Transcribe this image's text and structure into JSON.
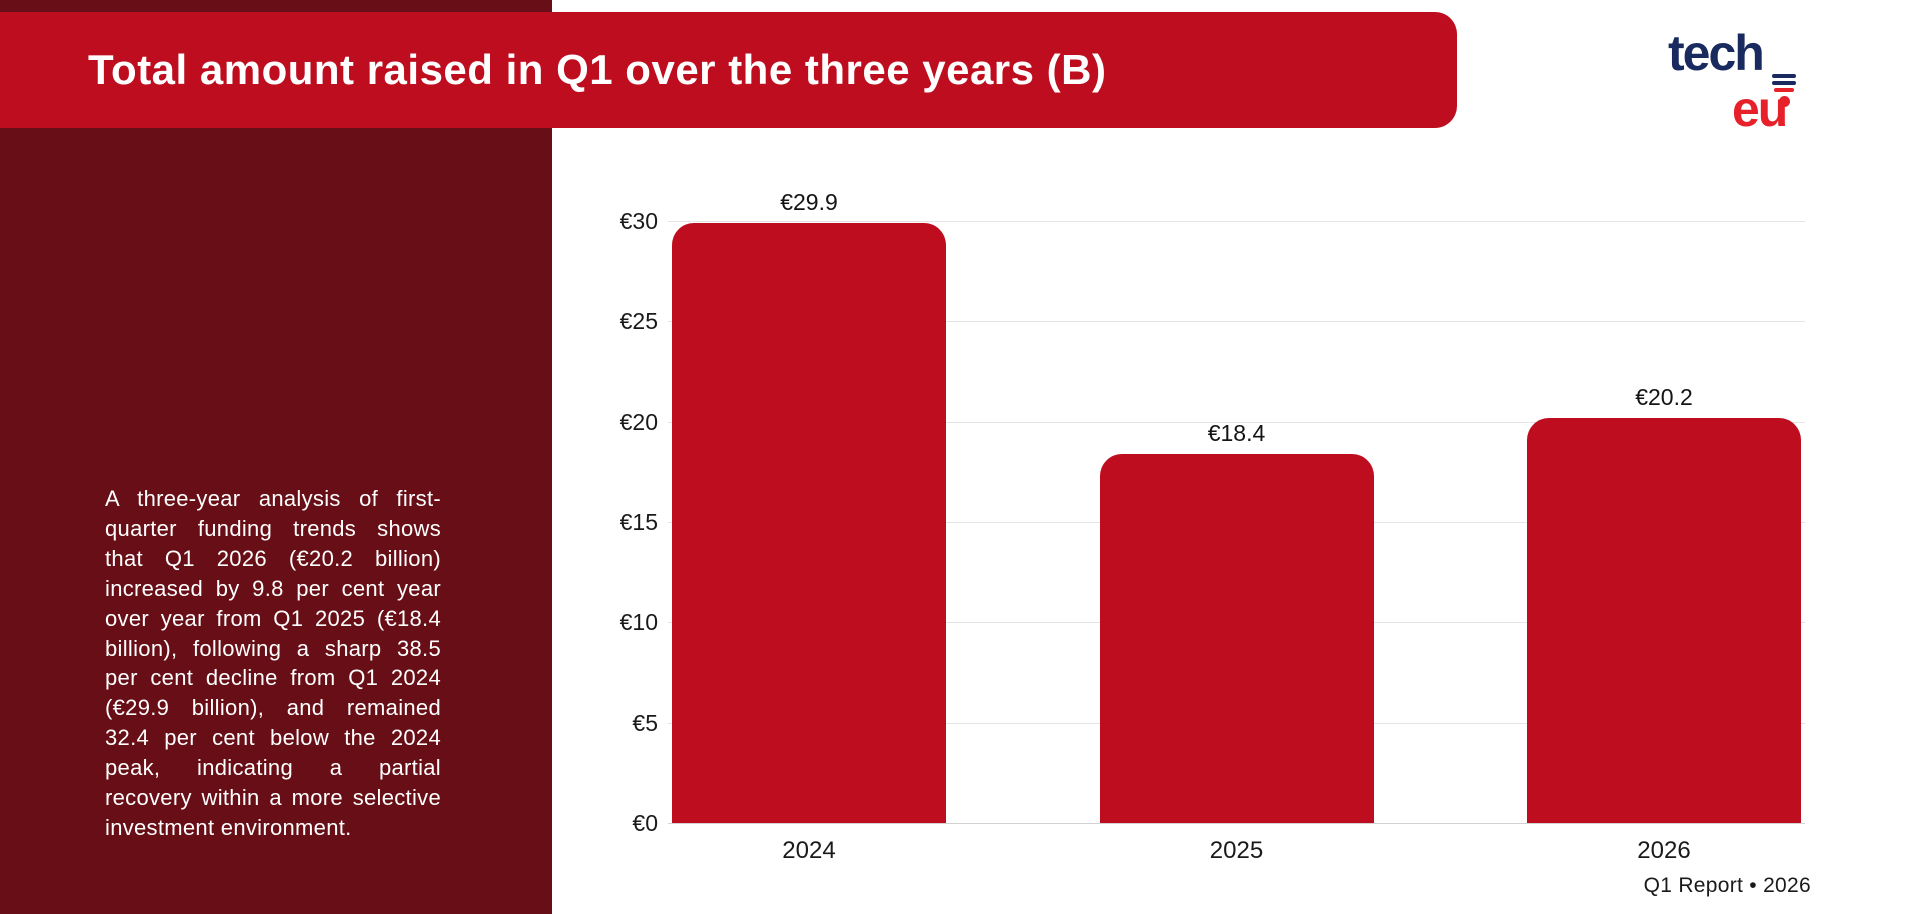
{
  "header": {
    "title": "Total amount raised in Q1 over the three years (B)",
    "logo": {
      "top": "tech",
      "bottom": "eu"
    }
  },
  "sidebar": {
    "paragraph": "A three-year analysis of first-quarter funding trends shows that Q1 2026 (€20.2 billion) increased by 9.8 per cent year over year from Q1 2025 (€18.4 billion), following a sharp 38.5 per cent decline from Q1 2024 (€29.9 billion), and remained 32.4 per cent below the 2024 peak, indicating a partial recovery within a more selective investment environment."
  },
  "footer": {
    "text": "Q1 Report • 2026"
  },
  "colors": {
    "accent_red": "#be0d1e",
    "sidebar_maroon": "#670e16",
    "logo_navy": "#182a5e",
    "logo_red": "#e62129",
    "gridline": "#e4e4e4",
    "text_dark": "#1a1a1a"
  },
  "chart_data": {
    "type": "bar",
    "title": "Total amount raised in Q1 over the three years (B)",
    "categories": [
      "2024",
      "2025",
      "2026"
    ],
    "values": [
      29.9,
      18.4,
      20.2
    ],
    "data_labels": [
      "€29.9",
      "€18.4",
      "€20.2"
    ],
    "y_ticks": [
      "€0",
      "€5",
      "€10",
      "€15",
      "€20",
      "€25",
      "€30"
    ],
    "y_tick_values": [
      0,
      5,
      10,
      15,
      20,
      25,
      30
    ],
    "ylim": [
      0,
      30
    ],
    "xlabel": "",
    "ylabel": "",
    "grid": true,
    "legend": false,
    "bar_color": "#be0d1e"
  }
}
